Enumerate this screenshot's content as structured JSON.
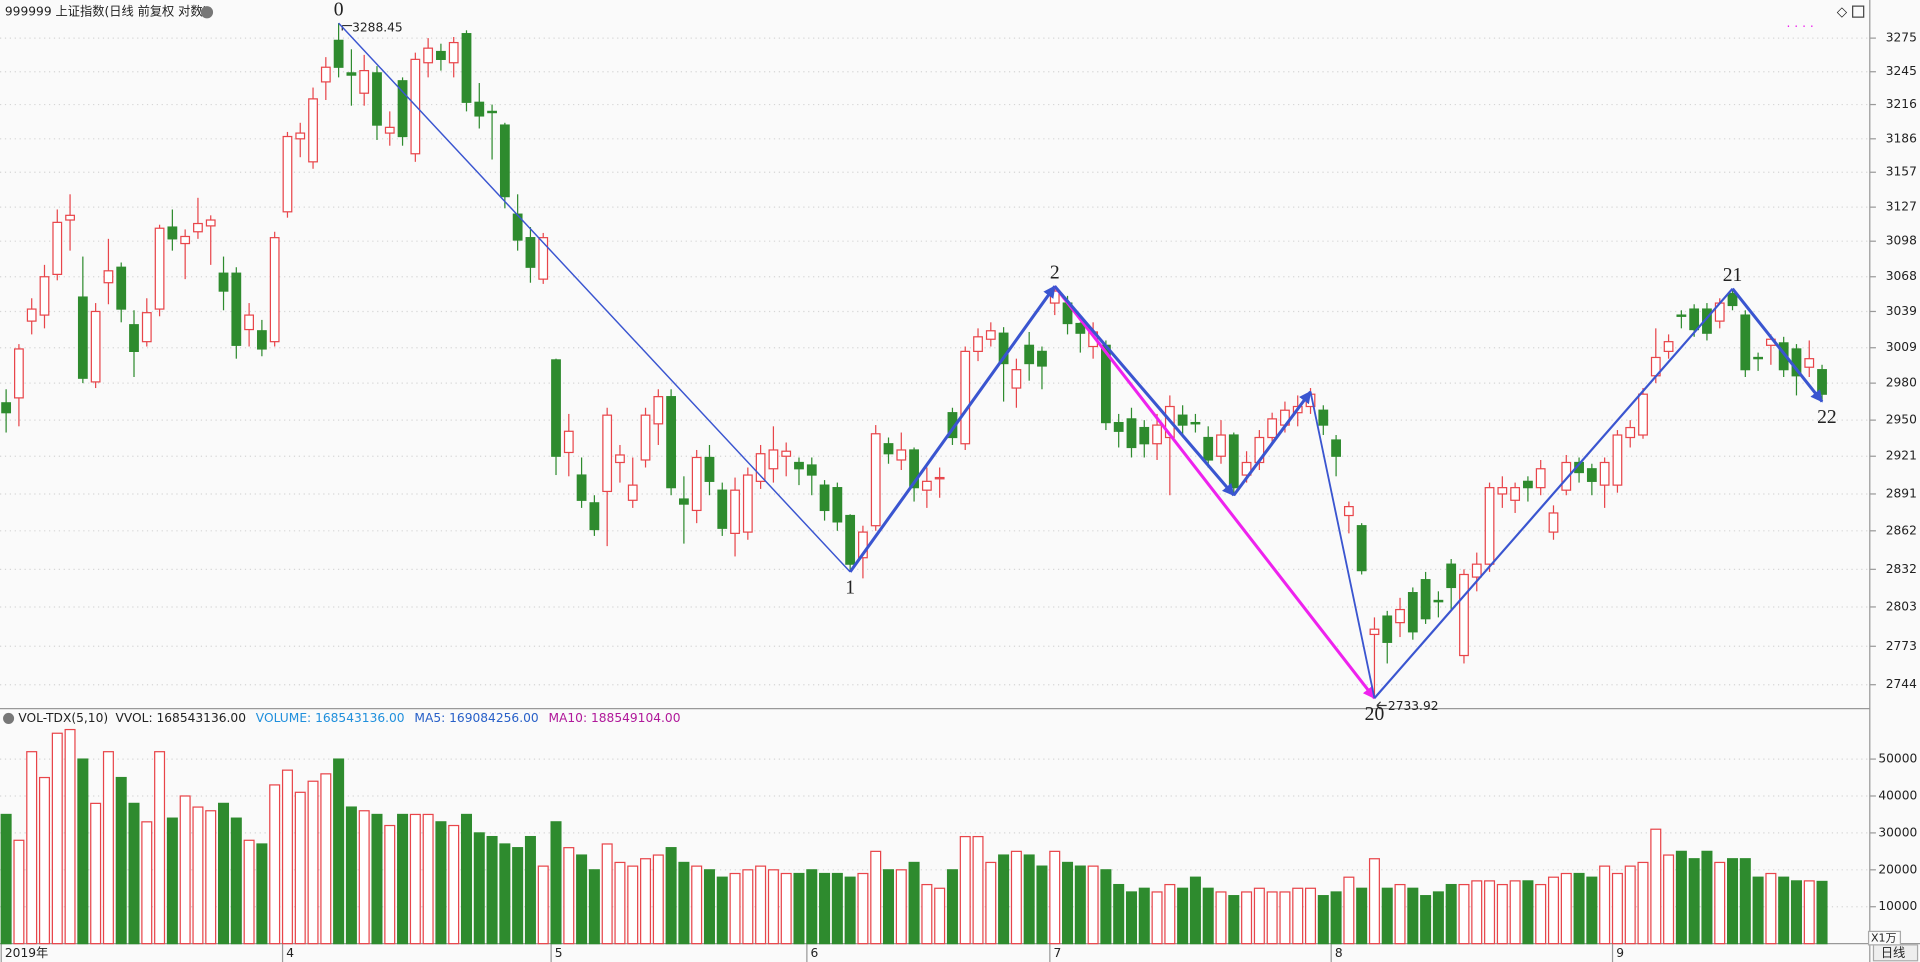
{
  "chart_data": {
    "type": "candlestick",
    "title": "999999 上证指数(日线 前复权 对数)",
    "period": "日线",
    "log_scale": true,
    "grid": true,
    "up_color": "#e8454a",
    "down_color": "#2e8b2e",
    "ylim": [
      2727,
      3306
    ],
    "yticks": [
      3275,
      3245,
      3216,
      3186,
      3157,
      3127,
      3098,
      3068,
      3039,
      3009,
      2980,
      2950,
      2921,
      2891,
      2862,
      2832,
      2803,
      2773,
      2744
    ],
    "categories": [
      "2019年",
      null,
      null,
      null,
      null,
      null,
      null,
      null,
      null,
      null,
      null,
      null,
      null,
      null,
      null,
      null,
      null,
      null,
      null,
      null,
      null,
      null,
      "4",
      null,
      null,
      null,
      null,
      null,
      null,
      null,
      null,
      null,
      null,
      null,
      null,
      null,
      null,
      null,
      null,
      null,
      null,
      null,
      null,
      "5",
      null,
      null,
      null,
      null,
      null,
      null,
      null,
      null,
      null,
      null,
      null,
      null,
      null,
      null,
      null,
      null,
      null,
      null,
      null,
      "6",
      null,
      null,
      null,
      null,
      null,
      null,
      null,
      null,
      null,
      null,
      null,
      null,
      null,
      null,
      null,
      null,
      null,
      null,
      "7",
      null,
      null,
      null,
      null,
      null,
      null,
      null,
      null,
      null,
      null,
      null,
      null,
      null,
      null,
      null,
      null,
      null,
      null,
      null,
      null,
      null,
      "8",
      null,
      null,
      null,
      null,
      null,
      null,
      null,
      null,
      null,
      null,
      null,
      null,
      null,
      null,
      null,
      null,
      null,
      null,
      null,
      null,
      null,
      "9",
      null,
      null,
      null,
      null,
      null,
      null,
      null,
      null,
      null,
      null,
      null,
      null,
      null,
      null,
      null,
      null
    ],
    "ohlc": [
      [
        2964,
        2975,
        2940,
        2956
      ],
      [
        2968,
        3012,
        2945,
        3008
      ],
      [
        3031,
        3050,
        3020,
        3041
      ],
      [
        3036,
        3078,
        3025,
        3068
      ],
      [
        3070,
        3125,
        3065,
        3114
      ],
      [
        3116,
        3138,
        3090,
        3120
      ],
      [
        3051,
        3085,
        2980,
        2984
      ],
      [
        2981,
        3046,
        2976,
        3039
      ],
      [
        3063,
        3100,
        3045,
        3073
      ],
      [
        3076,
        3080,
        3030,
        3041
      ],
      [
        3028,
        3040,
        2985,
        3006
      ],
      [
        3014,
        3050,
        3010,
        3038
      ],
      [
        3041,
        3112,
        3035,
        3109
      ],
      [
        3110,
        3125,
        3090,
        3100
      ],
      [
        3096,
        3108,
        3066,
        3102
      ],
      [
        3106,
        3135,
        3100,
        3113
      ],
      [
        3111,
        3120,
        3078,
        3116
      ],
      [
        3071,
        3085,
        3040,
        3056
      ],
      [
        3071,
        3076,
        3000,
        3011
      ],
      [
        3024,
        3046,
        3010,
        3036
      ],
      [
        3023,
        3032,
        3002,
        3008
      ],
      [
        3014,
        3106,
        3010,
        3101
      ],
      [
        3123,
        3192,
        3118,
        3188
      ],
      [
        3186,
        3200,
        3170,
        3191
      ],
      [
        3166,
        3231,
        3160,
        3221
      ],
      [
        3236,
        3258,
        3220,
        3249
      ],
      [
        3273,
        3288.45,
        3240,
        3249
      ],
      [
        3244,
        3265,
        3215,
        3242
      ],
      [
        3226,
        3260,
        3215,
        3246
      ],
      [
        3244,
        3250,
        3185,
        3198
      ],
      [
        3191,
        3210,
        3180,
        3196
      ],
      [
        3237,
        3240,
        3180,
        3188
      ],
      [
        3173,
        3262,
        3166,
        3256
      ],
      [
        3253,
        3275,
        3240,
        3266
      ],
      [
        3263,
        3270,
        3246,
        3256
      ],
      [
        3253,
        3276,
        3240,
        3271
      ],
      [
        3279,
        3282,
        3210,
        3218
      ],
      [
        3218,
        3235,
        3195,
        3206
      ],
      [
        3210,
        3216,
        3168,
        3209
      ],
      [
        3198,
        3200,
        3126,
        3136
      ],
      [
        3121,
        3138,
        3090,
        3099
      ],
      [
        3101,
        3110,
        3063,
        3076
      ],
      [
        3066,
        3105,
        3062,
        3101
      ],
      [
        2999,
        3000,
        2906,
        2921
      ],
      [
        2924,
        2955,
        2905,
        2941
      ],
      [
        2906,
        2920,
        2880,
        2886
      ],
      [
        2884,
        2890,
        2858,
        2863
      ],
      [
        2893,
        2960,
        2850,
        2954
      ],
      [
        2916,
        2930,
        2900,
        2922
      ],
      [
        2886,
        2920,
        2880,
        2898
      ],
      [
        2918,
        2960,
        2912,
        2954
      ],
      [
        2947,
        2975,
        2930,
        2969
      ],
      [
        2969,
        2975,
        2890,
        2896
      ],
      [
        2887,
        2905,
        2852,
        2883
      ],
      [
        2878,
        2926,
        2868,
        2920
      ],
      [
        2920,
        2930,
        2890,
        2901
      ],
      [
        2894,
        2900,
        2858,
        2864
      ],
      [
        2860,
        2904,
        2842,
        2894
      ],
      [
        2861,
        2912,
        2855,
        2906
      ],
      [
        2901,
        2930,
        2895,
        2923
      ],
      [
        2911,
        2945,
        2900,
        2926
      ],
      [
        2921,
        2932,
        2905,
        2925
      ],
      [
        2916,
        2920,
        2898,
        2911
      ],
      [
        2914,
        2920,
        2890,
        2906
      ],
      [
        2898,
        2902,
        2870,
        2878
      ],
      [
        2896,
        2900,
        2862,
        2869
      ],
      [
        2874,
        2875,
        2830,
        2836
      ],
      [
        2841,
        2866,
        2825,
        2861
      ],
      [
        2866,
        2946,
        2862,
        2939
      ],
      [
        2931,
        2936,
        2915,
        2923
      ],
      [
        2918,
        2940,
        2910,
        2926
      ],
      [
        2926,
        2928,
        2885,
        2896
      ],
      [
        2894,
        2912,
        2880,
        2901
      ],
      [
        2903,
        2912,
        2888,
        2904
      ],
      [
        2956,
        2960,
        2930,
        2936
      ],
      [
        2931,
        3010,
        2926,
        3006
      ],
      [
        3006,
        3025,
        2998,
        3018
      ],
      [
        3016,
        3030,
        3010,
        3023
      ],
      [
        3021,
        3026,
        2965,
        2996
      ],
      [
        2976,
        3000,
        2960,
        2991
      ],
      [
        3011,
        3022,
        2982,
        2996
      ],
      [
        3006,
        3010,
        2975,
        2994
      ],
      [
        3046,
        3060,
        3036,
        3056
      ],
      [
        3046,
        3052,
        3020,
        3029
      ],
      [
        3029,
        3030,
        3005,
        3021
      ],
      [
        3010,
        3030,
        3000,
        3022
      ],
      [
        3011,
        3015,
        2942,
        2948
      ],
      [
        2948,
        2955,
        2928,
        2941
      ],
      [
        2951,
        2960,
        2920,
        2928
      ],
      [
        2944,
        2950,
        2920,
        2931
      ],
      [
        2931,
        2955,
        2918,
        2946
      ],
      [
        2936,
        2970,
        2890,
        2961
      ],
      [
        2954,
        2962,
        2938,
        2946
      ],
      [
        2948,
        2955,
        2940,
        2947
      ],
      [
        2936,
        2945,
        2912,
        2918
      ],
      [
        2921,
        2950,
        2915,
        2938
      ],
      [
        2938,
        2940,
        2890,
        2896
      ],
      [
        2906,
        2925,
        2900,
        2916
      ],
      [
        2916,
        2942,
        2910,
        2936
      ],
      [
        2936,
        2956,
        2930,
        2951
      ],
      [
        2946,
        2965,
        2940,
        2958
      ],
      [
        2956,
        2970,
        2945,
        2961
      ],
      [
        2961,
        2976,
        2955,
        2971
      ],
      [
        2958,
        2962,
        2938,
        2946
      ],
      [
        2934,
        2938,
        2905,
        2921
      ],
      [
        2874,
        2885,
        2860,
        2881
      ],
      [
        2866,
        2868,
        2828,
        2831
      ],
      [
        2782,
        2795,
        2733.92,
        2786
      ],
      [
        2796,
        2800,
        2760,
        2776
      ],
      [
        2791,
        2810,
        2780,
        2801
      ],
      [
        2814,
        2818,
        2778,
        2784
      ],
      [
        2824,
        2830,
        2790,
        2794
      ],
      [
        2808,
        2815,
        2795,
        2807
      ],
      [
        2836,
        2840,
        2800,
        2818
      ],
      [
        2766,
        2832,
        2760,
        2828
      ],
      [
        2826,
        2845,
        2815,
        2836
      ],
      [
        2836,
        2900,
        2830,
        2896
      ],
      [
        2891,
        2905,
        2880,
        2896
      ],
      [
        2886,
        2900,
        2876,
        2896
      ],
      [
        2901,
        2905,
        2885,
        2896
      ],
      [
        2896,
        2918,
        2890,
        2911
      ],
      [
        2861,
        2882,
        2855,
        2876
      ],
      [
        2894,
        2922,
        2890,
        2916
      ],
      [
        2916,
        2920,
        2900,
        2908
      ],
      [
        2911,
        2915,
        2890,
        2901
      ],
      [
        2898,
        2920,
        2880,
        2916
      ],
      [
        2898,
        2942,
        2892,
        2938
      ],
      [
        2936,
        2950,
        2928,
        2944
      ],
      [
        2938,
        2976,
        2935,
        2971
      ],
      [
        2986,
        3025,
        2980,
        3001
      ],
      [
        3006,
        3020,
        3000,
        3014
      ],
      [
        3036,
        3040,
        3025,
        3035
      ],
      [
        3041,
        3045,
        3018,
        3024
      ],
      [
        3041,
        3046,
        3015,
        3021
      ],
      [
        3031,
        3050,
        3025,
        3046
      ],
      [
        3054,
        3058,
        3040,
        3044
      ],
      [
        3036,
        3040,
        2985,
        2991
      ],
      [
        3001,
        3005,
        2990,
        3000
      ],
      [
        3011,
        3020,
        2995,
        3016
      ],
      [
        3013,
        3018,
        2985,
        2991
      ],
      [
        3008,
        3012,
        2970,
        2986
      ],
      [
        2993,
        3015,
        2985,
        3000
      ],
      [
        2991,
        2995,
        2965,
        2971
      ]
    ],
    "wave_points": [
      {
        "label": "0",
        "index": 26,
        "value": 3288.45
      },
      {
        "label": "1",
        "index": 66,
        "value": 2830
      },
      {
        "label": "2",
        "index": 82,
        "value": 3060
      },
      {
        "label": null,
        "index": 96,
        "value": 2890
      },
      {
        "label": null,
        "index": 102,
        "value": 2973
      },
      {
        "label": "20",
        "index": 107,
        "value": 2733.92
      },
      {
        "label": "21",
        "index": 135,
        "value": 3058
      },
      {
        "label": "22",
        "index": 142,
        "value": 2965
      }
    ],
    "wave_segments": [
      {
        "from": 0,
        "to": 1,
        "color": "#3a55d0",
        "width": 1.2
      },
      {
        "from": 1,
        "to": 2,
        "color": "#3a55d0",
        "width": 2.5
      },
      {
        "from": 2,
        "to": 5,
        "color": "#ee22ee",
        "width": 2.5
      },
      {
        "from": 2,
        "to": 3,
        "color": "#3a55d0",
        "width": 2.5
      },
      {
        "from": 3,
        "to": 4,
        "color": "#3a55d0",
        "width": 2.5
      },
      {
        "from": 4,
        "to": 5,
        "color": "#3a55d0",
        "width": 1.5
      },
      {
        "from": 5,
        "to": 6,
        "color": "#3a55d0",
        "width": 1.8
      },
      {
        "from": 6,
        "to": 7,
        "color": "#3a55d0",
        "width": 2.5
      }
    ],
    "volume": {
      "title": "VOL-TDX(5,10)",
      "legend": [
        {
          "text": "VVOL: 168543136.00",
          "color": "#222222"
        },
        {
          "text": "VOLUME: 168543136.00",
          "color": "#1f8fdc"
        },
        {
          "text": "MA5: 169084256.00",
          "color": "#2860c8"
        },
        {
          "text": "MA10: 188549104.00",
          "color": "#b0189a"
        }
      ],
      "unit": "X1万",
      "ylim": [
        0,
        63000
      ],
      "yticks": [
        10000,
        20000,
        30000,
        40000,
        50000
      ],
      "values": [
        35000,
        28000,
        52000,
        45000,
        57000,
        58000,
        50000,
        38000,
        52000,
        45000,
        38000,
        33000,
        52000,
        34000,
        40000,
        37000,
        36000,
        38000,
        34000,
        28000,
        27000,
        43000,
        47000,
        41000,
        44000,
        46000,
        50000,
        37000,
        36000,
        35000,
        32000,
        35000,
        35000,
        35000,
        33000,
        32000,
        35000,
        30000,
        29000,
        27000,
        26000,
        29000,
        21000,
        33000,
        26000,
        24000,
        20000,
        27000,
        22000,
        21000,
        23000,
        24000,
        26000,
        22000,
        21000,
        20000,
        18000,
        19000,
        20000,
        21000,
        20000,
        19000,
        19000,
        20000,
        19000,
        19000,
        18000,
        19000,
        25000,
        20000,
        20000,
        22000,
        16000,
        15000,
        20000,
        29000,
        29000,
        22000,
        24000,
        25000,
        24000,
        21000,
        25000,
        22000,
        21000,
        21000,
        20000,
        16000,
        14000,
        15000,
        14000,
        16000,
        15000,
        18000,
        15000,
        14000,
        13000,
        14000,
        15000,
        14000,
        14000,
        15000,
        15000,
        13000,
        14000,
        18000,
        15000,
        23000,
        15000,
        16000,
        15000,
        13000,
        14000,
        16000,
        16000,
        17000,
        17000,
        16000,
        17000,
        17000,
        16000,
        18000,
        19000,
        19000,
        18000,
        21000,
        19000,
        21000,
        22000,
        31000,
        24000,
        25000,
        23000,
        25000,
        22000,
        23000,
        23000,
        18000,
        19000,
        18000,
        17000,
        17000,
        16854
      ]
    }
  }
}
